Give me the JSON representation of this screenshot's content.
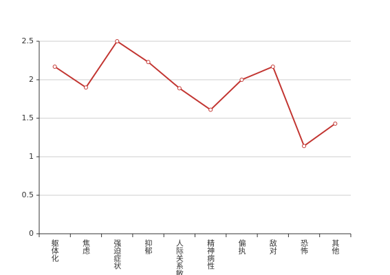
{
  "chart_data": {
    "type": "line",
    "categories": [
      "躯体化",
      "焦虑",
      "强迫症状",
      "抑郁",
      "人际关系敏感",
      "精神病性",
      "偏执",
      "敌对",
      "恐怖",
      "其他"
    ],
    "series": [
      {
        "color": "#c23531",
        "values": [
          2.17,
          1.9,
          2.5,
          2.23,
          1.89,
          1.61,
          2.0,
          2.17,
          1.14,
          1.43
        ]
      }
    ],
    "ylim": [
      0,
      2.5
    ],
    "yticks": [
      0,
      0.5,
      1,
      1.5,
      2,
      2.5
    ],
    "grid": true
  }
}
